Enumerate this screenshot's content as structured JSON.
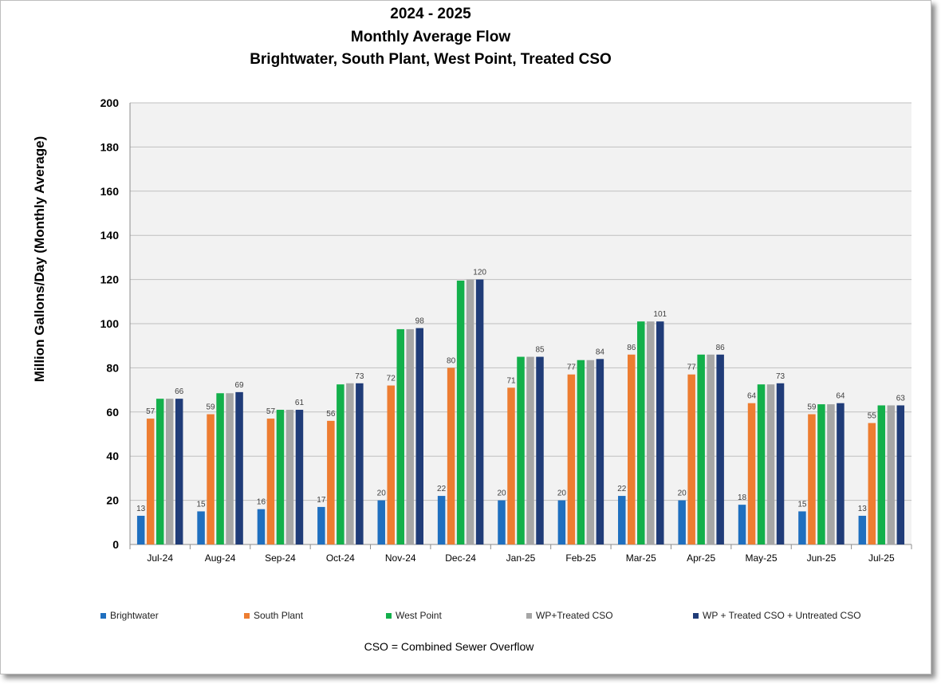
{
  "chart_data": {
    "type": "bar",
    "title_lines": [
      "2024 - 2025",
      "Monthly Average Flow",
      "Brightwater, South Plant, West Point, Treated CSO"
    ],
    "ylabel": "Million Gallons/Day (Monthly Average)",
    "xlabel": "",
    "ylim": [
      0,
      200
    ],
    "yticks": [
      0,
      20,
      40,
      60,
      80,
      100,
      120,
      140,
      160,
      180,
      200
    ],
    "grid": true,
    "legend_position": "bottom",
    "categories": [
      "Jul-24",
      "Aug-24",
      "Sep-24",
      "Oct-24",
      "Nov-24",
      "Dec-24",
      "Jan-25",
      "Feb-25",
      "Mar-25",
      "Apr-25",
      "May-25",
      "Jun-25",
      "Jul-25"
    ],
    "series": [
      {
        "name": "Brightwater",
        "color": "#1f6fbf",
        "values": [
          13,
          15,
          16,
          17,
          20,
          22,
          20,
          20,
          22,
          20,
          18,
          15,
          13
        ],
        "labeled": true
      },
      {
        "name": "South Plant",
        "color": "#ed7d31",
        "values": [
          57,
          59,
          57,
          56,
          72,
          80,
          71,
          77,
          86,
          77,
          64,
          59,
          55
        ],
        "labeled": true
      },
      {
        "name": "West Point",
        "color": "#13b04b",
        "values": [
          66,
          68.5,
          61,
          72.5,
          97.5,
          119.5,
          85,
          83.5,
          101,
          86,
          72.5,
          63.5,
          63
        ],
        "labeled": false
      },
      {
        "name": "WP+Treated CSO",
        "color": "#a6a6a6",
        "values": [
          66,
          68.5,
          61,
          73,
          97.5,
          120,
          85,
          83.5,
          101,
          86,
          72.5,
          63.5,
          63
        ],
        "labeled": false
      },
      {
        "name": "WP + Treated CSO + Untreated CSO",
        "color": "#203c78",
        "values": [
          66,
          69,
          61,
          73,
          98,
          120,
          85,
          84,
          101,
          86,
          73,
          64,
          63
        ],
        "data_labels": [
          "66",
          "69",
          "61",
          "73",
          "98",
          "120",
          "85",
          "84",
          "101",
          "86",
          "73",
          "64",
          "63"
        ],
        "labeled": true
      }
    ],
    "brightwater_labels": [
      "13",
      "15",
      "16",
      "17",
      "20",
      "22",
      "20",
      "20",
      "22",
      "20",
      "18",
      "15",
      "13"
    ],
    "south_plant_labels": [
      "57",
      "59",
      "57",
      "56",
      "72",
      "80",
      "71",
      "77",
      "86",
      "77",
      "64",
      "59",
      "55"
    ],
    "footnote": "CSO = Combined Sewer Overflow",
    "plot_bg": "#f2f2f2",
    "grid_color": "#bfbfbf"
  }
}
